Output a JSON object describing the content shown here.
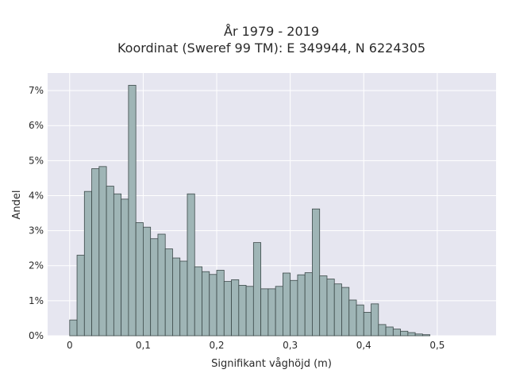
{
  "chart_data": {
    "type": "bar",
    "title": "År 1979 - 2019",
    "subtitle": "Koordinat (Sweref 99 TM): E 349944, N 6224305",
    "xlabel": "Signifikant våghöjd (m)",
    "ylabel": "Andel",
    "xlim": [
      -0.03,
      0.58
    ],
    "ylim": [
      0,
      7.5
    ],
    "x_ticks": [
      0,
      0.1,
      0.2,
      0.3,
      0.4,
      0.5
    ],
    "x_tick_labels": [
      "0",
      "0,1",
      "0,2",
      "0,3",
      "0,4",
      "0,5"
    ],
    "y_ticks": [
      0,
      1,
      2,
      3,
      4,
      5,
      6,
      7
    ],
    "y_tick_labels": [
      "0%",
      "1%",
      "2%",
      "3%",
      "4%",
      "5%",
      "6%",
      "7%"
    ],
    "bin_width": 0.01,
    "bin_start": 0.0,
    "values": [
      0.45,
      2.3,
      4.12,
      4.77,
      4.83,
      4.27,
      4.05,
      3.9,
      7.15,
      3.23,
      3.1,
      2.77,
      2.9,
      2.48,
      2.22,
      2.13,
      4.05,
      1.97,
      1.83,
      1.75,
      1.87,
      1.55,
      1.6,
      1.44,
      1.41,
      2.66,
      1.34,
      1.34,
      1.41,
      1.79,
      1.58,
      1.74,
      1.8,
      3.62,
      1.71,
      1.62,
      1.48,
      1.38,
      1.02,
      0.88,
      0.67,
      0.91,
      0.32,
      0.25,
      0.19,
      0.13,
      0.09,
      0.05,
      0.03
    ],
    "grid": true,
    "bar_color": "#9fb5b6",
    "edge_color": "#3d4a4a",
    "background": "#e6e6f0"
  }
}
